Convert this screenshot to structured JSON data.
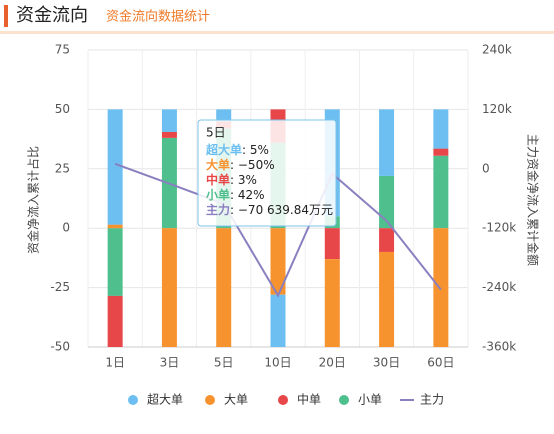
{
  "header": {
    "title": "资金流向",
    "subtitle": "资金流向数据统计"
  },
  "chart_data": {
    "type": "bar",
    "stacked": true,
    "ylabel": "资金净流入累计占比",
    "y2label": "主力资金净流入累计金额",
    "categories": [
      "1日",
      "3日",
      "5日",
      "10日",
      "20日",
      "30日",
      "60日"
    ],
    "series": [
      {
        "name": "超大单",
        "color": "#6cbff0",
        "values": [
          48.5,
          9.5,
          5,
          -22,
          45,
          28,
          16.5
        ]
      },
      {
        "name": "大单",
        "color": "#f7932f",
        "values": [
          1.5,
          -50,
          -50,
          -28,
          -37,
          -40,
          -50
        ]
      },
      {
        "name": "中单",
        "color": "#e8474a",
        "values": [
          -21.5,
          2.5,
          3,
          14,
          -13,
          -10,
          3
        ]
      },
      {
        "name": "小单",
        "color": "#50bf8e",
        "values": [
          -28.5,
          38,
          42,
          36,
          5,
          22,
          30.5
        ]
      },
      {
        "name": "主力",
        "color": "#8a80c0",
        "type": "line",
        "axis": "y2",
        "values": [
          10000,
          -30000,
          -70639.84,
          -256000,
          -10000,
          -105000,
          -244000
        ]
      }
    ],
    "ylim": [
      -50,
      75
    ],
    "yticks": [
      -50,
      -25,
      0,
      25,
      50,
      75
    ],
    "y2lim": [
      -360000,
      240000
    ],
    "y2ticks": [
      {
        "value": -360000,
        "label": "-360k"
      },
      {
        "value": -240000,
        "label": "-240k"
      },
      {
        "value": -120000,
        "label": "-120k"
      },
      {
        "value": 0,
        "label": "0"
      },
      {
        "value": 120000,
        "label": "120k"
      },
      {
        "value": 240000,
        "label": "240k"
      }
    ],
    "grid": true,
    "tooltip": {
      "title": "5日",
      "rows": [
        {
          "label": "超大单",
          "value": ": 5%"
        },
        {
          "label": "大单",
          "value": ": −50%"
        },
        {
          "label": "中单",
          "value": ": 3%"
        },
        {
          "label": "小单",
          "value": ": 42%"
        },
        {
          "label": "主力",
          "value": ": −70 639.84万元"
        }
      ]
    }
  }
}
